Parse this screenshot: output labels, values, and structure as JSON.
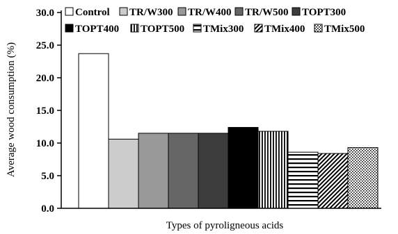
{
  "chart_data": {
    "type": "bar",
    "ylabel": "Average wood consumption (%)",
    "xlabel": "Types of pyroligneous acids",
    "ylim": [
      0,
      30
    ],
    "yticks": [
      0,
      5,
      10,
      15,
      20,
      25,
      30
    ],
    "yticklabels": [
      "0.0",
      "5.0",
      "10.0",
      "15.0",
      "20.0",
      "25.0",
      "30.0"
    ],
    "legend_position": "top",
    "series": [
      {
        "name": "Control",
        "value": 23.7,
        "fill": "#ffffff",
        "pattern": "none"
      },
      {
        "name": "TR/W300",
        "value": 10.6,
        "fill": "#cccccc",
        "pattern": "none"
      },
      {
        "name": "TR/W400",
        "value": 11.5,
        "fill": "#999999",
        "pattern": "none"
      },
      {
        "name": "TR/W500",
        "value": 11.5,
        "fill": "#666666",
        "pattern": "none"
      },
      {
        "name": "TOPT300",
        "value": 11.5,
        "fill": "#3d3d3d",
        "pattern": "none"
      },
      {
        "name": "TOPT400",
        "value": 12.4,
        "fill": "#000000",
        "pattern": "none"
      },
      {
        "name": "TOPT500",
        "value": 11.8,
        "fill": "#ffffff",
        "pattern": "vertical"
      },
      {
        "name": "TMix300",
        "value": 8.6,
        "fill": "#ffffff",
        "pattern": "horizontal"
      },
      {
        "name": "TMix400",
        "value": 8.4,
        "fill": "#ffffff",
        "pattern": "diagonal"
      },
      {
        "name": "TMix500",
        "value": 9.3,
        "fill": "#ffffff",
        "pattern": "dots"
      }
    ]
  }
}
